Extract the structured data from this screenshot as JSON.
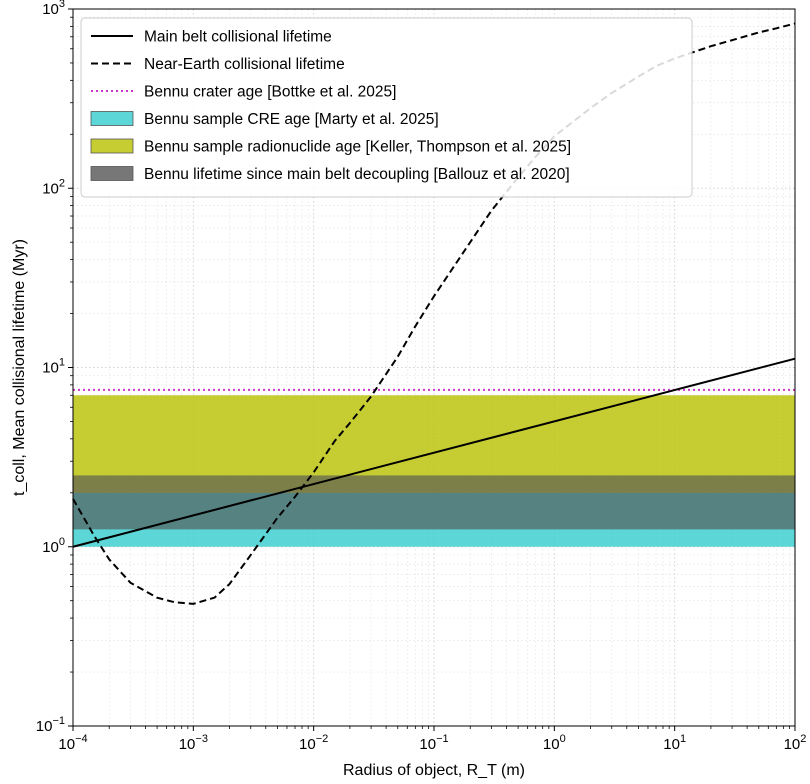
{
  "chart_data": {
    "type": "line",
    "xlabel": "Radius of object, R_T (m)",
    "ylabel": "t_coll, Mean collisional lifetime (Myr)",
    "xscale": "log",
    "yscale": "log",
    "xlim": [
      0.0001,
      100
    ],
    "ylim": [
      0.1,
      1000
    ],
    "x_ticks": [
      {
        "value": 0.0001,
        "base": "10",
        "exp": "−4"
      },
      {
        "value": 0.001,
        "base": "10",
        "exp": "−3"
      },
      {
        "value": 0.01,
        "base": "10",
        "exp": "−2"
      },
      {
        "value": 0.1,
        "base": "10",
        "exp": "−1"
      },
      {
        "value": 1,
        "base": "10",
        "exp": "0"
      },
      {
        "value": 10,
        "base": "10",
        "exp": "1"
      },
      {
        "value": 100,
        "base": "10",
        "exp": "2"
      }
    ],
    "y_ticks": [
      {
        "value": 0.1,
        "base": "10",
        "exp": "−1"
      },
      {
        "value": 1,
        "base": "10",
        "exp": "0"
      },
      {
        "value": 10,
        "base": "10",
        "exp": "1"
      },
      {
        "value": 100,
        "base": "10",
        "exp": "2"
      },
      {
        "value": 1000,
        "base": "10",
        "exp": "3"
      }
    ],
    "grid": true,
    "legend_position": "top-left",
    "series": [
      {
        "name": "Main belt collisional lifetime",
        "style": "solid",
        "color": "#000000",
        "x": [
          0.0001,
          100
        ],
        "y": [
          1.0,
          11.2
        ]
      },
      {
        "name": "Near-Earth collisional lifetime",
        "style": "dashed",
        "color": "#000000",
        "x": [
          0.0001,
          0.00015,
          0.0002,
          0.0003,
          0.0005,
          0.0007,
          0.001,
          0.0015,
          0.002,
          0.003,
          0.005,
          0.007,
          0.01,
          0.015,
          0.02,
          0.03,
          0.05,
          0.07,
          0.1,
          0.2,
          0.3,
          0.5,
          0.7,
          1,
          2,
          3,
          5,
          7,
          10,
          20,
          30,
          50,
          70,
          100
        ],
        "y": [
          1.85,
          1.15,
          0.85,
          0.63,
          0.52,
          0.49,
          0.48,
          0.52,
          0.62,
          0.9,
          1.45,
          1.9,
          2.6,
          3.9,
          4.9,
          6.9,
          11.5,
          17,
          25,
          50,
          75,
          115,
          150,
          195,
          280,
          340,
          420,
          480,
          530,
          620,
          670,
          740,
          780,
          830
        ]
      }
    ],
    "lines": [
      {
        "name": "Bennu crater age [Bottke et al. 2025]",
        "style": "dotted",
        "color": "#cc33cc",
        "y": 7.5
      }
    ],
    "bands": [
      {
        "name": "Bennu sample CRE age [Marty et al. 2025]",
        "color": "#33cccc",
        "y_low": 1.0,
        "y_high": 2.0
      },
      {
        "name": "Bennu sample radionuclide age [Keller, Thompson et al. 2025]",
        "color": "#b8c000",
        "y_low": 2.0,
        "y_high": 7.0
      },
      {
        "name": "Bennu lifetime since main belt decoupling [Ballouz et al. 2020]",
        "color": "#555555",
        "y_low": 1.25,
        "y_high": 2.5
      }
    ],
    "legend": [
      {
        "label": "Main belt collisional lifetime",
        "kind": "solid",
        "color": "#000000"
      },
      {
        "label": "Near-Earth collisional lifetime",
        "kind": "dashed",
        "color": "#000000"
      },
      {
        "label": "Bennu crater age [Bottke et al. 2025]",
        "kind": "dotted",
        "color": "#cc33cc"
      },
      {
        "label": "Bennu sample CRE age [Marty et al. 2025]",
        "kind": "patch",
        "color": "#33cccc"
      },
      {
        "label": "Bennu sample radionuclide age [Keller, Thompson et al. 2025]",
        "kind": "patch",
        "color": "#b8c000"
      },
      {
        "label": "Bennu lifetime since main belt decoupling [Ballouz et al. 2020]",
        "kind": "patch",
        "color": "#555555"
      }
    ]
  }
}
